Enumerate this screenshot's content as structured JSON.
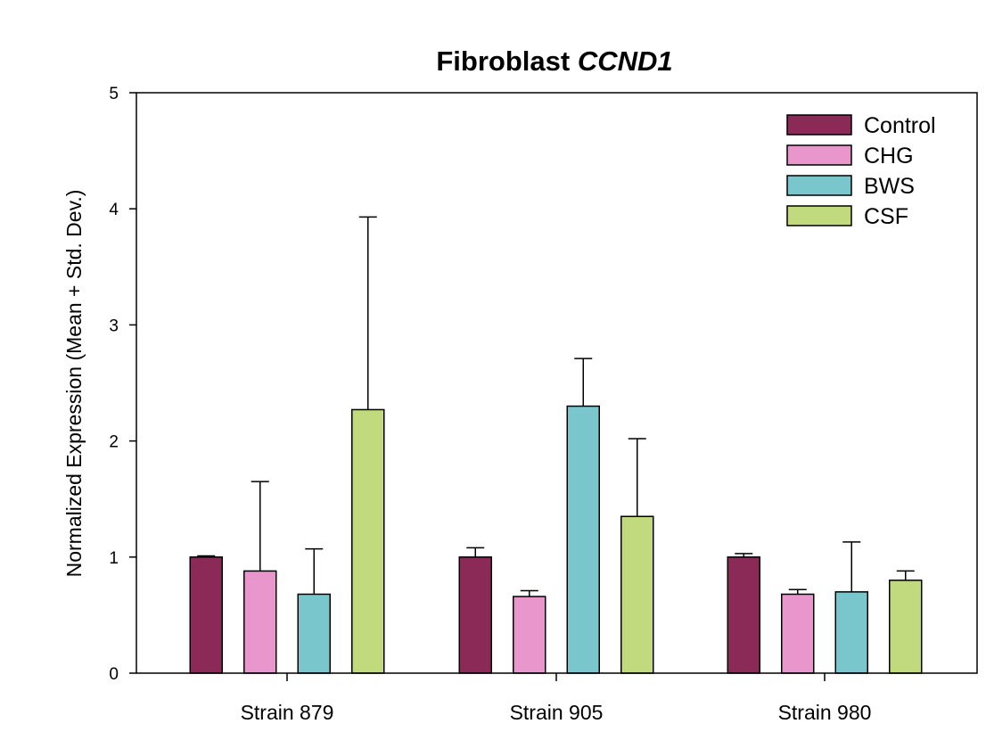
{
  "chart_data": {
    "type": "bar",
    "title": "Fibroblast ",
    "title_italic": "CCND1",
    "xlabel": "",
    "ylabel": "Normalized Expression (Mean + Std. Dev.)",
    "ylim": [
      0,
      5
    ],
    "yticks": [
      0,
      1,
      2,
      3,
      4,
      5
    ],
    "categories": [
      "Strain 879",
      "Strain 905",
      "Strain 980"
    ],
    "series": [
      {
        "name": "Control",
        "color": "#8b2a56",
        "values": [
          1.0,
          1.0,
          1.0
        ],
        "errors": [
          0.01,
          0.08,
          0.03
        ]
      },
      {
        "name": "CHG",
        "color": "#e896cc",
        "values": [
          0.88,
          0.66,
          0.68
        ],
        "errors": [
          0.77,
          0.05,
          0.04
        ]
      },
      {
        "name": "BWS",
        "color": "#79c7cc",
        "values": [
          0.68,
          2.3,
          0.7
        ],
        "errors": [
          0.39,
          0.41,
          0.43
        ]
      },
      {
        "name": "CSF",
        "color": "#c2da7e",
        "values": [
          2.27,
          1.35,
          0.8
        ],
        "errors": [
          1.66,
          0.67,
          0.08
        ]
      }
    ],
    "legend_position": "top-right",
    "grid": false
  }
}
